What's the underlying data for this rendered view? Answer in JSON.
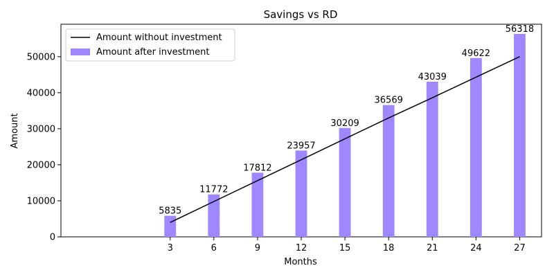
{
  "chart_data": {
    "type": "bar",
    "title": "Savings vs RD",
    "xlabel": "Months",
    "ylabel": "Amount",
    "categories": [
      3,
      6,
      9,
      12,
      15,
      18,
      21,
      24,
      27
    ],
    "xlim": [
      -4.5,
      28.5
    ],
    "ylim": [
      0,
      59000
    ],
    "yticks": [
      0,
      10000,
      20000,
      30000,
      40000,
      50000
    ],
    "grid": false,
    "legend_position": "upper-left",
    "series": [
      {
        "name": "Amount without investment",
        "type": "line",
        "color": "#000000",
        "x": [
          3,
          6,
          9,
          12,
          15,
          18,
          21,
          24,
          27
        ],
        "values": [
          4000,
          9800,
          15600,
          21400,
          27200,
          33000,
          38600,
          44300,
          50000
        ]
      },
      {
        "name": "Amount after investment",
        "type": "bar",
        "color": "#9f87ff",
        "x": [
          3,
          6,
          9,
          12,
          15,
          18,
          21,
          24,
          27
        ],
        "values": [
          5835,
          11772,
          17812,
          23957,
          30209,
          36569,
          43039,
          49622,
          56318
        ],
        "data_labels": [
          "5835",
          "11772",
          "17812",
          "23957",
          "30209",
          "36569",
          "43039",
          "49622",
          "56318"
        ]
      }
    ]
  }
}
